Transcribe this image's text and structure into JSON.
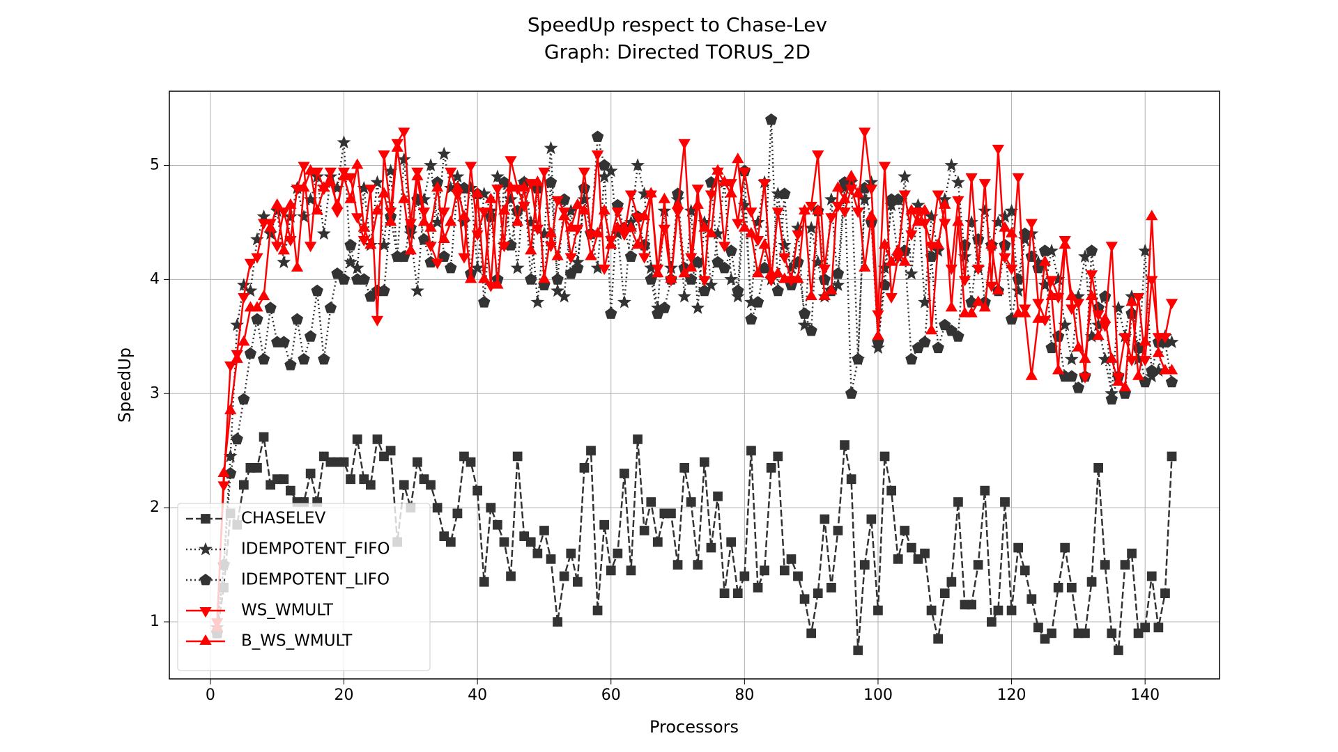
{
  "chart_data": {
    "type": "line",
    "title": "SpeedUp respect to Chase-Lev",
    "subtitle": "Graph: Directed TORUS_2D",
    "x_label": "Processors",
    "y_label": "SpeedUp",
    "x": [
      1,
      2,
      3,
      4,
      5,
      6,
      7,
      8,
      9,
      10,
      11,
      12,
      13,
      14,
      15,
      16,
      17,
      18,
      19,
      20,
      21,
      22,
      23,
      24,
      25,
      26,
      27,
      28,
      29,
      30,
      31,
      32,
      33,
      34,
      35,
      36,
      37,
      38,
      39,
      40,
      41,
      42,
      43,
      44,
      45,
      46,
      47,
      48,
      49,
      50,
      51,
      52,
      53,
      54,
      55,
      56,
      57,
      58,
      59,
      60,
      61,
      62,
      63,
      64,
      65,
      66,
      67,
      68,
      69,
      70,
      71,
      72,
      73,
      74,
      75,
      76,
      77,
      78,
      79,
      80,
      81,
      82,
      83,
      84,
      85,
      86,
      87,
      88,
      89,
      90,
      91,
      92,
      93,
      94,
      95,
      96,
      97,
      98,
      99,
      100,
      101,
      102,
      103,
      104,
      105,
      106,
      107,
      108,
      109,
      110,
      111,
      112,
      113,
      114,
      115,
      116,
      117,
      118,
      119,
      120,
      121,
      122,
      123,
      124,
      125,
      126,
      127,
      128,
      129,
      130,
      131,
      132,
      133,
      134,
      135,
      136,
      137,
      138,
      139,
      140,
      141,
      142,
      143,
      144
    ],
    "series": [
      {
        "name": "CHASELEV",
        "color": "#333333",
        "values": [
          0.9,
          1.3,
          1.95,
          1.85,
          2.2,
          2.35,
          2.35,
          2.62,
          2.2,
          2.25,
          2.25,
          2.15,
          2.05,
          2.05,
          2.3,
          2.05,
          2.45,
          2.4,
          2.4,
          2.4,
          2.25,
          2.6,
          2.25,
          2.2,
          2.6,
          2.45,
          2.5,
          1.7,
          2.2,
          2.0,
          2.4,
          2.25,
          2.2,
          2.0,
          1.75,
          1.7,
          1.95,
          2.45,
          2.4,
          2.15,
          1.35,
          2.0,
          1.85,
          1.7,
          1.4,
          2.45,
          1.75,
          1.7,
          1.6,
          1.8,
          1.55,
          1.0,
          1.4,
          1.6,
          1.35,
          2.35,
          2.5,
          1.1,
          1.85,
          1.45,
          1.6,
          2.3,
          1.45,
          2.6,
          1.8,
          2.05,
          1.7,
          1.95,
          1.95,
          1.5,
          2.35,
          2.05,
          1.5,
          2.4,
          1.65,
          2.1,
          1.25,
          1.7,
          1.25,
          1.4,
          2.5,
          1.3,
          1.45,
          2.35,
          2.45,
          1.45,
          1.55,
          1.4,
          1.2,
          0.9,
          1.25,
          1.9,
          1.3,
          1.8,
          2.55,
          2.25,
          0.75,
          1.5,
          1.9,
          1.1,
          2.45,
          2.15,
          1.55,
          1.8,
          1.65,
          1.55,
          1.6,
          1.1,
          0.85,
          1.25,
          1.35,
          2.05,
          1.15,
          1.15,
          1.5,
          2.15,
          1.0,
          1.1,
          2.05,
          1.1,
          1.65,
          1.45,
          1.2,
          0.95,
          0.85,
          0.9,
          1.3,
          1.65,
          1.3,
          0.9,
          0.9,
          1.35,
          2.35,
          1.5,
          0.9,
          0.75,
          1.5,
          1.6,
          0.9,
          0.95,
          1.4,
          0.95,
          1.25,
          2.45
        ]
      },
      {
        "name": "IDEMPOTENT_FIFO",
        "color": "#333333",
        "values": [
          0.95,
          1.5,
          2.45,
          3.6,
          3.95,
          3.9,
          4.35,
          4.55,
          4.4,
          4.6,
          4.15,
          4.55,
          4.8,
          4.55,
          4.7,
          4.9,
          4.4,
          4.9,
          4.8,
          5.2,
          4.15,
          4.1,
          4.8,
          4.3,
          4.85,
          4.3,
          4.95,
          4.2,
          5.05,
          4.4,
          3.9,
          4.7,
          5.0,
          4.5,
          5.1,
          4.8,
          4.9,
          4.5,
          4.8,
          4.1,
          4.75,
          4.6,
          4.9,
          4.3,
          4.7,
          4.1,
          4.85,
          4.5,
          3.8,
          4.4,
          5.15,
          3.9,
          3.85,
          4.6,
          4.15,
          4.7,
          4.4,
          4.1,
          4.9,
          4.95,
          4.4,
          3.8,
          4.5,
          5.0,
          4.75,
          4.1,
          3.75,
          4.6,
          4.1,
          4.7,
          3.85,
          4.6,
          3.75,
          4.5,
          3.95,
          4.4,
          4.85,
          4.0,
          3.85,
          4.65,
          3.8,
          4.5,
          4.85,
          4.0,
          4.75,
          4.3,
          4.1,
          4.45,
          3.6,
          4.45,
          4.15,
          3.85,
          4.7,
          3.95,
          4.8,
          4.85,
          3.3,
          4.7,
          4.85,
          3.4,
          4.1,
          4.65,
          4.2,
          4.9,
          4.05,
          4.65,
          3.8,
          4.55,
          4.25,
          4.7,
          5.0,
          4.85,
          4.2,
          4.5,
          4.1,
          4.6,
          4.3,
          4.5,
          4.55,
          4.6,
          3.9,
          4.35,
          4.4,
          4.15,
          3.95,
          4.25,
          4.0,
          3.6,
          3.3,
          3.85,
          4.2,
          3.5,
          3.6,
          3.3,
          3.0,
          3.75,
          3.5,
          3.85,
          3.3,
          4.25,
          3.15,
          3.2,
          3.5,
          3.45
        ]
      },
      {
        "name": "IDEMPOTENT_LIFO",
        "color": "#333333",
        "values": [
          0.9,
          1.5,
          2.3,
          2.6,
          2.95,
          3.35,
          3.65,
          3.3,
          3.75,
          3.45,
          3.45,
          3.25,
          3.65,
          3.3,
          3.5,
          3.9,
          3.3,
          3.75,
          4.05,
          4.0,
          4.3,
          4.0,
          4.0,
          3.85,
          3.9,
          3.9,
          4.55,
          4.2,
          4.2,
          4.45,
          4.7,
          4.35,
          4.15,
          4.85,
          4.2,
          4.1,
          4.8,
          4.8,
          4.05,
          4.75,
          3.8,
          4.55,
          4.0,
          4.85,
          4.3,
          4.6,
          4.85,
          4.0,
          4.8,
          3.95,
          4.85,
          4.0,
          4.7,
          4.05,
          4.1,
          4.8,
          4.4,
          5.25,
          5.0,
          3.7,
          4.65,
          4.45,
          4.2,
          4.55,
          4.3,
          4.0,
          3.7,
          3.75,
          4.0,
          4.75,
          4.1,
          4.0,
          4.15,
          3.9,
          4.85,
          4.15,
          4.1,
          4.25,
          3.9,
          4.95,
          3.65,
          3.8,
          4.1,
          5.4,
          3.9,
          4.75,
          3.95,
          4.15,
          3.7,
          3.55,
          4.6,
          4.0,
          3.9,
          4.05,
          4.85,
          3.0,
          3.3,
          4.8,
          4.5,
          3.45,
          3.95,
          4.7,
          4.7,
          4.25,
          3.3,
          3.4,
          3.45,
          4.2,
          3.4,
          3.6,
          3.55,
          3.5,
          4.3,
          3.8,
          4.35,
          3.8,
          4.3,
          3.9,
          4.3,
          3.65,
          4.0,
          4.4,
          4.2,
          4.1,
          4.25,
          3.4,
          3.5,
          3.15,
          3.15,
          3.05,
          3.15,
          4.25,
          3.75,
          3.85,
          2.95,
          3.15,
          3.0,
          3.7,
          3.4,
          3.1,
          3.2,
          3.45,
          3.45,
          3.1
        ]
      },
      {
        "name": "WS_WMULT",
        "color": "#ff0000",
        "values": [
          1.0,
          2.2,
          3.25,
          3.35,
          3.85,
          4.15,
          4.2,
          4.5,
          4.5,
          4.3,
          4.6,
          4.35,
          4.8,
          5.0,
          4.3,
          4.95,
          4.8,
          4.95,
          4.6,
          4.95,
          4.9,
          4.55,
          4.35,
          4.8,
          3.65,
          5.1,
          4.6,
          5.2,
          5.3,
          4.5,
          4.95,
          4.6,
          4.3,
          4.15,
          4.6,
          4.95,
          4.75,
          4.2,
          5.0,
          4.4,
          4.6,
          3.95,
          4.8,
          4.3,
          5.05,
          4.8,
          4.65,
          4.85,
          4.45,
          4.95,
          4.3,
          4.7,
          4.6,
          4.2,
          4.45,
          4.95,
          4.4,
          5.1,
          4.1,
          4.35,
          4.6,
          4.4,
          4.75,
          4.55,
          4.2,
          4.75,
          4.1,
          4.45,
          4.0,
          4.6,
          5.2,
          4.2,
          4.8,
          4.0,
          4.75,
          4.95,
          4.3,
          4.85,
          4.5,
          4.95,
          4.6,
          4.35,
          4.85,
          4.0,
          4.6,
          4.2,
          4.0,
          4.4,
          4.6,
          4.65,
          5.1,
          4.1,
          4.55,
          4.65,
          4.6,
          4.8,
          4.6,
          5.3,
          4.8,
          3.7,
          5.0,
          3.85,
          4.2,
          4.75,
          4.4,
          4.6,
          4.5,
          4.3,
          4.75,
          4.5,
          4.1,
          4.7,
          4.0,
          4.9,
          4.1,
          4.85,
          3.95,
          5.15,
          4.2,
          4.1,
          4.9,
          3.75,
          4.5,
          3.8,
          3.65,
          4.0,
          3.85,
          4.35,
          3.75,
          3.8,
          3.15,
          4.05,
          3.7,
          3.6,
          4.3,
          3.15,
          3.5,
          3.3,
          3.85,
          3.3,
          4.0,
          3.5,
          3.5,
          3.8
        ]
      },
      {
        "name": "B_WS_WMULT",
        "color": "#ff0000",
        "values": [
          0.95,
          2.3,
          2.85,
          3.3,
          3.45,
          3.75,
          3.75,
          3.85,
          4.45,
          4.65,
          4.25,
          4.65,
          4.1,
          4.8,
          4.95,
          4.6,
          4.8,
          4.85,
          4.65,
          4.9,
          4.7,
          5.0,
          4.45,
          4.3,
          4.6,
          4.75,
          4.5,
          5.15,
          4.7,
          4.25,
          4.9,
          4.5,
          4.45,
          4.8,
          4.35,
          4.5,
          4.8,
          4.55,
          4.0,
          4.75,
          4.0,
          4.7,
          3.95,
          4.6,
          4.8,
          4.5,
          4.8,
          4.25,
          4.85,
          4.0,
          4.4,
          4.2,
          4.55,
          4.45,
          4.65,
          4.6,
          4.2,
          4.4,
          4.6,
          4.3,
          4.45,
          4.45,
          4.45,
          4.3,
          4.55,
          4.75,
          4.05,
          4.7,
          4.0,
          4.65,
          4.05,
          4.1,
          4.65,
          4.45,
          4.4,
          4.95,
          4.85,
          4.75,
          5.05,
          4.45,
          4.4,
          4.05,
          4.3,
          4.05,
          4.05,
          4.0,
          4.0,
          4.0,
          4.6,
          3.85,
          4.6,
          3.85,
          3.9,
          4.8,
          4.7,
          4.9,
          4.75,
          4.1,
          4.55,
          3.5,
          4.3,
          4.15,
          4.25,
          4.15,
          4.6,
          4.5,
          4.6,
          3.55,
          4.3,
          4.65,
          3.75,
          4.5,
          3.7,
          3.7,
          3.8,
          3.75,
          4.3,
          3.9,
          4.45,
          4.4,
          3.7,
          3.7,
          3.15,
          3.65,
          4.15,
          3.85,
          3.2,
          4.3,
          3.85,
          3.4,
          3.3,
          3.85,
          3.5,
          3.65,
          3.3,
          3.1,
          3.05,
          3.8,
          3.15,
          3.45,
          4.55,
          3.35,
          3.2,
          3.2
        ]
      }
    ],
    "xlim": [
      -6.15,
      151.15
    ],
    "ylim": [
      0.5,
      5.65
    ],
    "xticks": [
      0,
      20,
      40,
      60,
      80,
      100,
      120,
      140
    ],
    "yticks": [
      1,
      2,
      3,
      4,
      5
    ],
    "grid": true,
    "legend": "lower left"
  }
}
